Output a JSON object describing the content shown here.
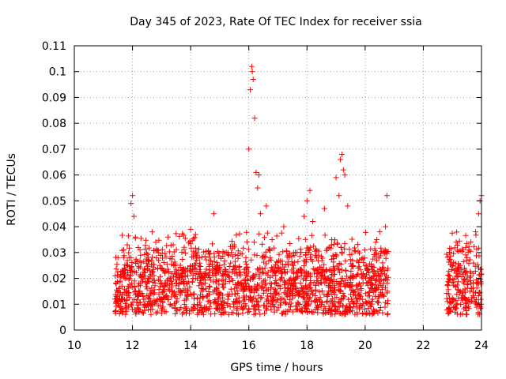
{
  "chart_data": {
    "type": "scatter",
    "title": "Day 345 of 2023, Rate Of TEC Index for receiver ssia",
    "xlabel": "GPS time / hours",
    "ylabel": "ROTI / TECUs",
    "xlim": [
      10,
      24
    ],
    "ylim": [
      0,
      0.11
    ],
    "x_ticks": [
      10,
      12,
      14,
      16,
      18,
      20,
      22,
      24
    ],
    "x_tick_labels": [
      "10",
      "12",
      "14",
      "16",
      "18",
      "20",
      "22",
      "24"
    ],
    "y_ticks": [
      0,
      0.01,
      0.02,
      0.03,
      0.04,
      0.05,
      0.06,
      0.07,
      0.08,
      0.09,
      0.1,
      0.11
    ],
    "y_tick_labels": [
      "0",
      "0.01",
      "0.02",
      "0.03",
      "0.04",
      "0.05",
      "0.06",
      "0.07",
      "0.08",
      "0.09",
      "0.1",
      "0.11"
    ],
    "grid": true,
    "marker": "+",
    "colors": {
      "points": "#ff0000",
      "grid": "#a0a0a0",
      "axes": "#000000"
    },
    "series": [
      {
        "x": [
          11.4,
          11.5,
          11.6,
          11.7,
          11.8,
          11.9,
          11.95,
          12.0,
          12.05,
          12.1,
          12.2,
          12.3,
          12.4,
          12.5,
          12.6,
          12.8,
          13.0,
          13.2,
          13.4,
          13.6,
          13.9,
          14.0,
          14.1,
          14.3,
          14.5,
          14.8,
          14.9,
          15.0,
          15.2,
          15.4,
          15.5,
          15.6,
          15.8,
          15.9,
          16.0,
          16.05,
          16.1,
          16.12,
          16.15,
          16.2,
          16.25,
          16.3,
          16.35,
          16.4,
          16.6,
          16.8,
          17.0,
          17.2,
          17.4,
          17.6,
          17.8,
          17.9,
          18.0,
          18.1,
          18.2,
          18.4,
          18.6,
          18.8,
          19.0,
          19.1,
          19.15,
          19.2,
          19.25,
          19.3,
          19.4,
          19.6,
          19.8,
          20.0,
          20.2,
          20.4,
          20.5,
          20.6,
          20.7,
          20.75,
          22.9,
          23.0,
          23.2,
          23.4,
          23.5,
          23.6,
          23.8,
          23.9,
          23.95,
          24.0
        ],
        "y": [
          0.012,
          0.028,
          0.009,
          0.031,
          0.015,
          0.02,
          0.049,
          0.052,
          0.044,
          0.036,
          0.013,
          0.026,
          0.01,
          0.018,
          0.023,
          0.034,
          0.012,
          0.019,
          0.033,
          0.015,
          0.021,
          0.039,
          0.014,
          0.028,
          0.022,
          0.045,
          0.016,
          0.025,
          0.018,
          0.03,
          0.033,
          0.021,
          0.015,
          0.028,
          0.07,
          0.093,
          0.102,
          0.1,
          0.097,
          0.082,
          0.061,
          0.055,
          0.06,
          0.045,
          0.048,
          0.035,
          0.024,
          0.04,
          0.019,
          0.03,
          0.022,
          0.044,
          0.05,
          0.054,
          0.042,
          0.029,
          0.047,
          0.018,
          0.059,
          0.052,
          0.066,
          0.068,
          0.062,
          0.06,
          0.048,
          0.021,
          0.018,
          0.025,
          0.016,
          0.035,
          0.038,
          0.026,
          0.04,
          0.052,
          0.03,
          0.012,
          0.024,
          0.018,
          0.028,
          0.015,
          0.038,
          0.045,
          0.05,
          0.052
        ],
        "band": {
          "segments": [
            [
              11.4,
              20.8
            ],
            [
              22.8,
              24.0
            ]
          ],
          "base_low": 0.006,
          "base_high": 0.024,
          "count": 2000
        }
      }
    ]
  }
}
